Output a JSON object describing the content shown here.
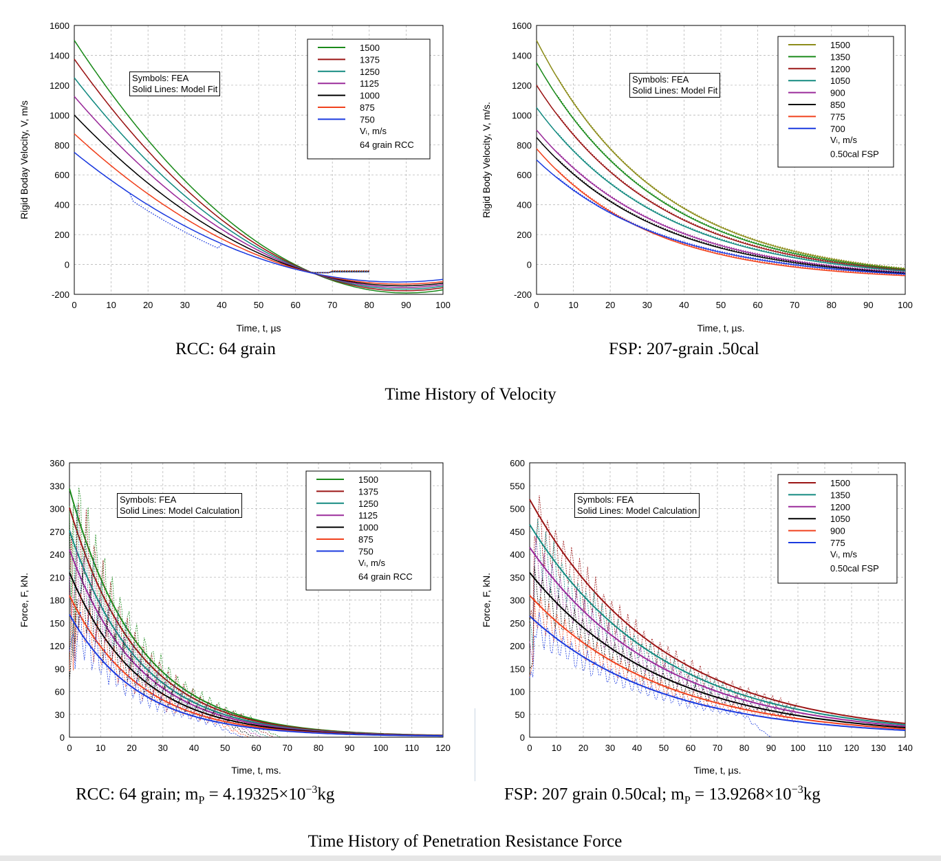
{
  "figure_titles": {
    "velocity": "Time History of Velocity",
    "force": "Time History of Penetration Resistance Force"
  },
  "chart_data": [
    {
      "type": "line",
      "caption": "RCC:  64 grain",
      "xlabel": "Time, t, µs",
      "ylabel": "Rigid Boday Velocity, V, m/s",
      "xlim": [
        0,
        100
      ],
      "ylim": [
        -200,
        1600
      ],
      "xticks": [
        0,
        10,
        20,
        30,
        40,
        50,
        60,
        70,
        80,
        90,
        100
      ],
      "yticks": [
        -200,
        0,
        200,
        400,
        600,
        800,
        1000,
        1200,
        1400,
        1600
      ],
      "grid": true,
      "note": [
        "Symbols:  FEA",
        "Solid Lines:  Model Fit"
      ],
      "legend": {
        "position": "top-right",
        "title": "Vₗ, m/s",
        "footer": "64 grain RCC"
      },
      "series": [
        {
          "name": "1500",
          "color": "#1a8a1a",
          "v0": 1500,
          "fea_end_x": 80
        },
        {
          "name": "1375",
          "color": "#9a1414",
          "v0": 1375,
          "fea_end_x": 80
        },
        {
          "name": "1250",
          "color": "#138a80",
          "v0": 1250,
          "fea_end_x": 80
        },
        {
          "name": "1125",
          "color": "#9a2a9a",
          "v0": 1125,
          "fea_end_x": 80
        },
        {
          "name": "1000",
          "color": "#000000",
          "v0": 1000,
          "fea_end_x": 80
        },
        {
          "name": "875",
          "color": "#f0401c",
          "v0": 875,
          "fea_end_x": 80
        },
        {
          "name": "750",
          "color": "#1a3adf",
          "v0": 750,
          "fea_end_x": 80
        }
      ],
      "model": {
        "crossing_x": 65,
        "crossing_y": -60,
        "end_values": [
          -170,
          -155,
          -145,
          -135,
          -125,
          -115,
          -100
        ]
      }
    },
    {
      "type": "line",
      "caption": "FSP:  207-grain .50cal",
      "xlabel": "Time, t, µs.",
      "ylabel": "Rigid Body Velocity, V, m/s.",
      "xlim": [
        0,
        100
      ],
      "ylim": [
        -200,
        1600
      ],
      "xticks": [
        0,
        10,
        20,
        30,
        40,
        50,
        60,
        70,
        80,
        90,
        100
      ],
      "yticks": [
        -200,
        0,
        200,
        400,
        600,
        800,
        1000,
        1200,
        1400,
        1600
      ],
      "grid": true,
      "note": [
        "Symbols:  FEA",
        "Solid Lines:  Model Fit"
      ],
      "legend": {
        "position": "top-right",
        "title": "Vₗ, m/s",
        "footer": "0.50cal FSP"
      },
      "series": [
        {
          "name": "1500",
          "color": "#8c8c1a",
          "v0": 1500,
          "v100": -30
        },
        {
          "name": "1350",
          "color": "#1a8a1a",
          "v0": 1350,
          "v100": -35
        },
        {
          "name": "1200",
          "color": "#9a1414",
          "v0": 1200,
          "v100": -40
        },
        {
          "name": "1050",
          "color": "#138a80",
          "v0": 1050,
          "v100": -45
        },
        {
          "name": "900",
          "color": "#9a2a9a",
          "v0": 900,
          "v100": -55
        },
        {
          "name": "850",
          "color": "#000000",
          "v0": 850,
          "v100": -60
        },
        {
          "name": "775",
          "color": "#f0401c",
          "v0": 775,
          "v100": -75
        },
        {
          "name": "700",
          "color": "#1a3adf",
          "v0": 700,
          "v100": -65
        }
      ]
    },
    {
      "type": "line",
      "caption_prefix": "RCC: 64 grain;  m",
      "caption_sub": "P",
      "caption_suffix": " = 4.19325×10",
      "caption_sup": "−3",
      "caption_unit": "kg",
      "xlabel": "Time, t, ms.",
      "ylabel": "Force, F, kN.",
      "xlim": [
        0,
        120
      ],
      "ylim": [
        0,
        360
      ],
      "xticks": [
        0,
        10,
        20,
        30,
        40,
        50,
        60,
        70,
        80,
        90,
        100,
        110,
        120
      ],
      "yticks": [
        0,
        30,
        60,
        90,
        120,
        150,
        180,
        210,
        240,
        270,
        300,
        330,
        360
      ],
      "grid": true,
      "note": [
        "Symbols:  FEA",
        "Solid Lines:  Model Calculation"
      ],
      "legend": {
        "position": "top-right",
        "title": "Vₗ, m/s",
        "footer": "64 grain RCC"
      },
      "series": [
        {
          "name": "1500",
          "color": "#1a8a1a",
          "f0": 325,
          "fea_end_x": 68
        },
        {
          "name": "1375",
          "color": "#9a1414",
          "f0": 300,
          "fea_end_x": 66
        },
        {
          "name": "1250",
          "color": "#138a80",
          "f0": 270,
          "fea_end_x": 64
        },
        {
          "name": "1125",
          "color": "#9a2a9a",
          "f0": 245,
          "fea_end_x": 62
        },
        {
          "name": "1000",
          "color": "#000000",
          "f0": 215,
          "fea_end_x": 60
        },
        {
          "name": "875",
          "color": "#f0401c",
          "f0": 185,
          "fea_end_x": 58
        },
        {
          "name": "750",
          "color": "#1a3adf",
          "f0": 160,
          "fea_end_x": 56
        }
      ]
    },
    {
      "type": "line",
      "caption_prefix": "FSP: 207 grain 0.50cal;  m",
      "caption_sub": "P",
      "caption_suffix": " = 13.9268×10",
      "caption_sup": "−3",
      "caption_unit": "kg",
      "xlabel": "Time, t, µs.",
      "ylabel": "Force, F, kN.",
      "xlim": [
        0,
        140
      ],
      "ylim": [
        0,
        600
      ],
      "xticks": [
        0,
        10,
        20,
        30,
        40,
        50,
        60,
        70,
        80,
        90,
        100,
        110,
        120,
        130,
        140
      ],
      "yticks": [
        0,
        50,
        100,
        150,
        200,
        250,
        300,
        350,
        400,
        450,
        500,
        550,
        600
      ],
      "grid": true,
      "note": [
        "Symbols:  FEA",
        "Solid Lines:  Model Calculation"
      ],
      "legend": {
        "position": "top-right",
        "title": "Vₗ, m/s",
        "footer": "0.50cal FSP"
      },
      "series": [
        {
          "name": "1500",
          "color": "#9a1414",
          "f0": 520,
          "f140": 30,
          "fea_end_x": 100
        },
        {
          "name": "1350",
          "color": "#138a80",
          "f0": 465,
          "f140": 27,
          "fea_end_x": 100
        },
        {
          "name": "1200",
          "color": "#9a2a9a",
          "f0": 415,
          "f140": 24,
          "fea_end_x": 100
        },
        {
          "name": "1050",
          "color": "#000000",
          "f0": 360,
          "f140": 21,
          "fea_end_x": 100
        },
        {
          "name": "900",
          "color": "#f0401c",
          "f0": 310,
          "f140": 18,
          "fea_end_x": 100
        },
        {
          "name": "775",
          "color": "#1a3adf",
          "f0": 265,
          "f140": 15,
          "fea_end_x": 90
        }
      ]
    }
  ]
}
